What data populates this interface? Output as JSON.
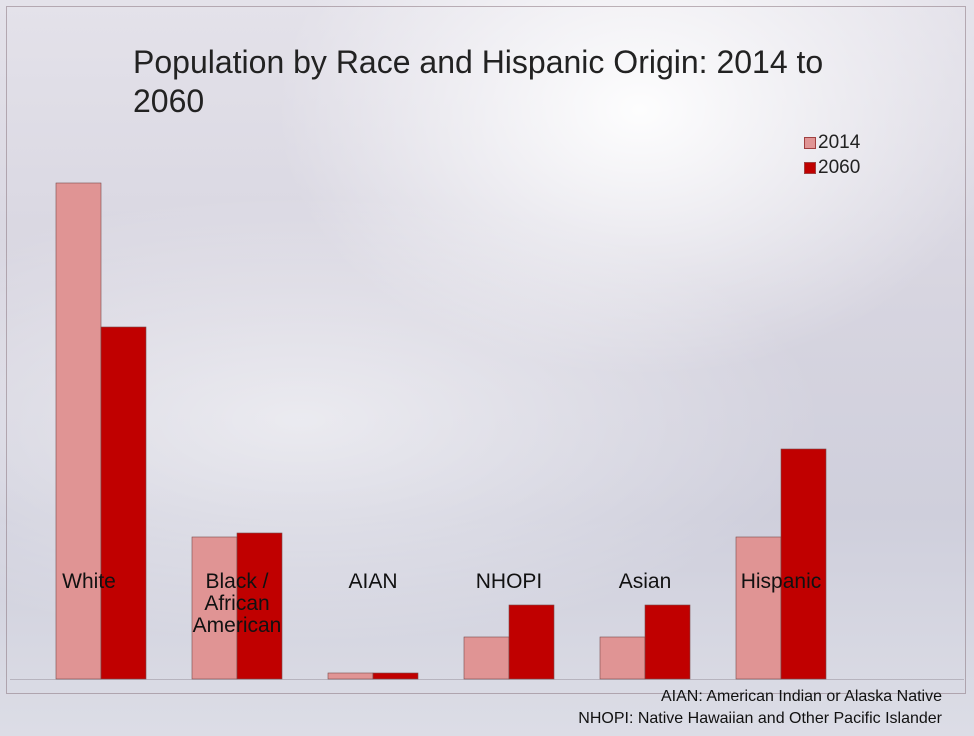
{
  "chart_data": {
    "type": "bar",
    "title": "Population by Race and Hispanic Origin: 2014 to 2060",
    "categories": [
      "White",
      "Black / African American",
      "AIAN",
      "NHOPI",
      "Asian",
      "Hispanic"
    ],
    "series": [
      {
        "name": "2014",
        "values": [
          248,
          71,
          3,
          21,
          21,
          71
        ],
        "color": "#e09494"
      },
      {
        "name": "2060",
        "values": [
          176,
          73,
          3,
          37,
          37,
          115
        ],
        "color": "#c00000"
      }
    ],
    "ylim": [
      0,
      280
    ],
    "grid": false,
    "legend_position": "top-right",
    "xlabel": "",
    "ylabel": ""
  },
  "footnotes": [
    "AIAN: American Indian or Alaska Native",
    "NHOPI: Native Hawaiian and Other Pacific Islander"
  ]
}
